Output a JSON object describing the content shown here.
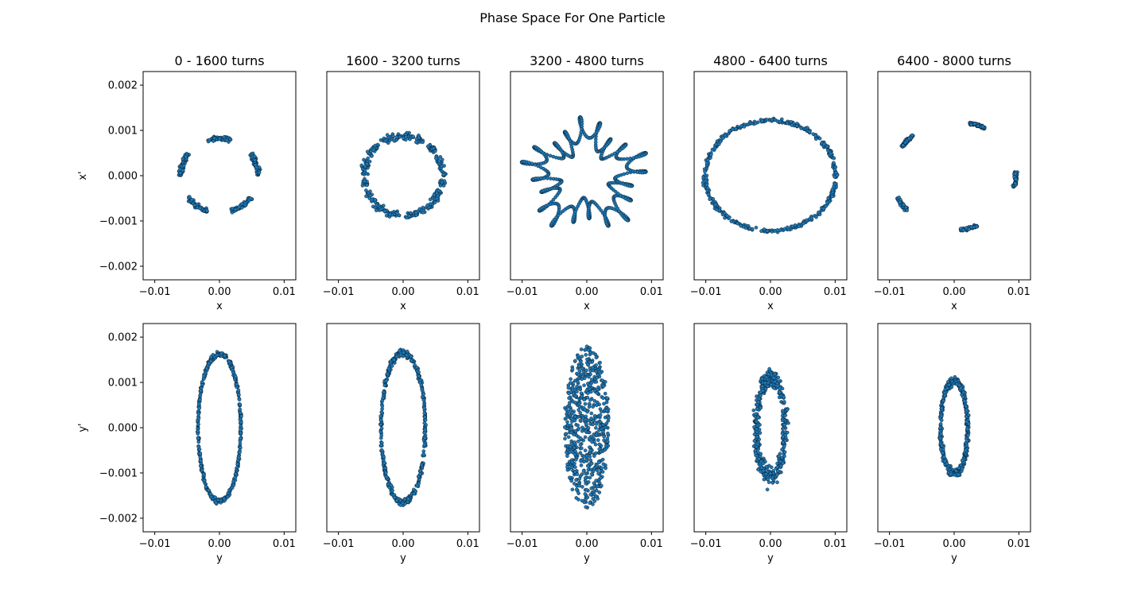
{
  "chart_data": {
    "type": "scatter",
    "title": "Phase Space For One Particle",
    "marker_color": "#1f77b4",
    "marker_edge_color": "#000000",
    "columns": [
      {
        "title": "0 - 1600 turns"
      },
      {
        "title": "1600 - 3200 turns"
      },
      {
        "title": "3200 - 4800 turns"
      },
      {
        "title": "4800 - 6400 turns"
      },
      {
        "title": "6400 - 8000 turns"
      }
    ],
    "rows": [
      {
        "xlabel": "x",
        "ylabel": "x'"
      },
      {
        "xlabel": "y",
        "ylabel": "y'"
      }
    ],
    "xlim": [
      -0.0118,
      0.0118
    ],
    "ylim": [
      -0.0023,
      0.0023
    ],
    "xticks": [
      -0.01,
      0.0,
      0.01
    ],
    "xtick_labels": [
      "−0.01",
      "0.00",
      "0.01"
    ],
    "yticks": [
      -0.002,
      -0.001,
      0.0,
      0.001,
      0.002
    ],
    "ytick_labels": [
      "−0.002",
      "−0.001",
      "0.000",
      "0.001",
      "0.002"
    ],
    "grid": false,
    "panels": [
      {
        "row": 0,
        "col": 0,
        "shape": "islands",
        "cx": 0.0,
        "cy": 0.0,
        "rx": 0.006,
        "ry": 0.00082,
        "islands": 5,
        "island_arc_deg": 36,
        "start_angle_deg": 90,
        "thickness": 0.08
      },
      {
        "row": 0,
        "col": 1,
        "shape": "islands",
        "cx": 0.0,
        "cy": 0.0,
        "rx": 0.006,
        "ry": 0.00088,
        "islands": 5,
        "island_arc_deg": 66,
        "start_angle_deg": 90,
        "thickness": 0.13
      },
      {
        "row": 0,
        "col": 2,
        "shape": "tangled_ring",
        "cx": -0.0002,
        "cy": 0.0,
        "rx": 0.0082,
        "ry": 0.001,
        "lobes": 5,
        "wiggle": 0.22
      },
      {
        "row": 0,
        "col": 3,
        "shape": "ring",
        "cx": 0.0,
        "cy": 0.0,
        "rx": 0.0101,
        "ry": 0.00122,
        "thickness": 0.05
      },
      {
        "row": 0,
        "col": 4,
        "shape": "islands",
        "cx": 0.0,
        "cy": 0.0,
        "rx": 0.0095,
        "ry": 0.0012,
        "islands": 5,
        "island_arc_deg": 16,
        "start_angle_deg": 68,
        "thickness": 0.04
      },
      {
        "row": 1,
        "col": 0,
        "shape": "ring",
        "cx": 0.0,
        "cy": 0.0,
        "rx": 0.0033,
        "ry": 0.00163,
        "thickness": 0.05
      },
      {
        "row": 1,
        "col": 1,
        "shape": "ring",
        "cx": 0.0,
        "cy": 0.0,
        "rx": 0.0034,
        "ry": 0.00165,
        "thickness": 0.07
      },
      {
        "row": 1,
        "col": 2,
        "shape": "filled",
        "cx": 0.0,
        "cy": 0.0,
        "rx": 0.0035,
        "ry": 0.0018
      },
      {
        "row": 1,
        "col": 3,
        "shape": "ring",
        "cx": 0.0,
        "cy": 0.0,
        "rx": 0.0022,
        "ry": 0.0011,
        "thickness": 0.3
      },
      {
        "row": 1,
        "col": 4,
        "shape": "ring",
        "cx": 0.0,
        "cy": 0.0,
        "rx": 0.0021,
        "ry": 0.00102,
        "thickness": 0.14
      }
    ]
  }
}
